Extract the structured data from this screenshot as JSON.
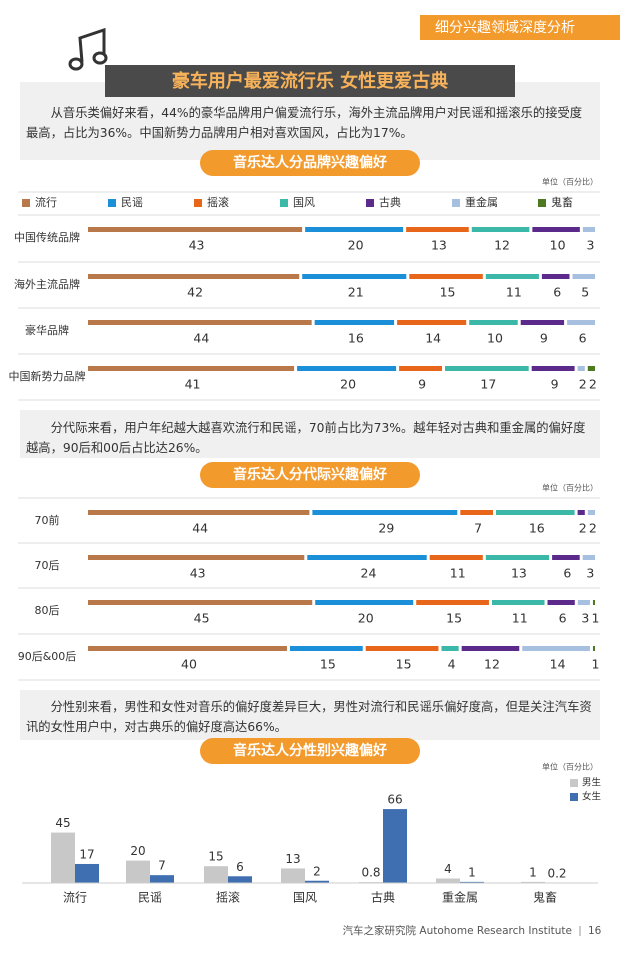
{
  "header": {
    "tag": "细分兴趣领域深度分析",
    "title": "豪车用户最爱流行乐 女性更爱古典"
  },
  "paragraphs": [
    "从音乐类偏好来看，44%的豪华品牌用户偏爱流行乐，海外主流品牌用户对民谣和摇滚乐的接受度最高，占比为36%。中国新势力品牌用户相对喜欢国风，占比为17%。",
    "分代际来看，用户年纪越大越喜欢流行和民谣，70前占比为73%。越年轻对古典和重金属的偏好度越高，90后和00后占比达26%。",
    "分性别来看，男性和女性对音乐的偏好度差异巨大，男性对流行和民谣乐偏好度高，但是关注汽车资讯的女性用户中，对古典乐的偏好度高达66%。"
  ],
  "chart_data": [
    {
      "type": "segmented_bar",
      "title": "音乐达人分品牌兴趣偏好",
      "unit": "单位（百分比）",
      "categories": [
        "中国传统品牌",
        "海外主流品牌",
        "豪华品牌",
        "中国新势力品牌"
      ],
      "series": [
        {
          "name": "流行",
          "color": "#b8784a",
          "values": [
            43,
            42,
            44,
            41
          ]
        },
        {
          "name": "民谣",
          "color": "#1b90d8",
          "values": [
            20,
            21,
            16,
            20
          ]
        },
        {
          "name": "摇滚",
          "color": "#e8661a",
          "values": [
            13,
            15,
            14,
            9
          ]
        },
        {
          "name": "国风",
          "color": "#3bb8a8",
          "values": [
            12,
            11,
            10,
            17
          ]
        },
        {
          "name": "古典",
          "color": "#5c2a8a",
          "values": [
            10,
            6,
            9,
            9
          ]
        },
        {
          "name": "重金属",
          "color": "#a8c0e0",
          "values": [
            3,
            5,
            6,
            2
          ]
        },
        {
          "name": "鬼畜",
          "color": "#4d7a20",
          "values": [
            null,
            null,
            null,
            2
          ]
        }
      ]
    },
    {
      "type": "segmented_bar",
      "title": "音乐达人分代际兴趣偏好",
      "unit": "单位（百分比）",
      "categories": [
        "70前",
        "70后",
        "80后",
        "90后&00后"
      ],
      "series": [
        {
          "color": "#b8784a",
          "values": [
            44,
            43,
            45,
            40
          ]
        },
        {
          "color": "#1b90d8",
          "values": [
            29,
            24,
            20,
            15
          ]
        },
        {
          "color": "#e8661a",
          "values": [
            7,
            11,
            15,
            15
          ]
        },
        {
          "color": "#3bb8a8",
          "values": [
            16,
            13,
            11,
            4
          ]
        },
        {
          "color": "#5c2a8a",
          "values": [
            2,
            6,
            6,
            12
          ]
        },
        {
          "color": "#a8c0e0",
          "values": [
            2,
            3,
            3,
            14
          ]
        },
        {
          "color": "#4d7a20",
          "values": [
            null,
            null,
            1,
            1
          ]
        }
      ]
    },
    {
      "type": "bar",
      "title": "音乐达人分性别兴趣偏好",
      "unit": "单位（百分比）",
      "categories": [
        "流行",
        "民谣",
        "摇滚",
        "国风",
        "古典",
        "重金属",
        "鬼畜"
      ],
      "series": [
        {
          "name": "男生",
          "color": "#c8c8c8",
          "values": [
            45,
            20,
            15,
            13,
            0.8,
            4,
            1
          ]
        },
        {
          "name": "女生",
          "color": "#3f6fb0",
          "values": [
            17,
            7,
            6,
            2,
            66,
            1,
            0.2
          ]
        }
      ]
    }
  ],
  "footer": {
    "source": "汽车之家研究院 Autohome Research Institute",
    "page": "16"
  }
}
